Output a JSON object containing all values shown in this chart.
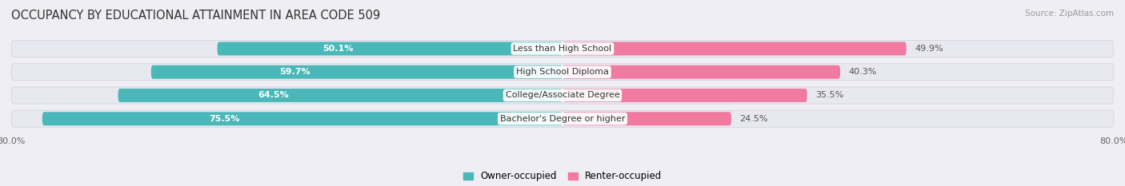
{
  "title": "OCCUPANCY BY EDUCATIONAL ATTAINMENT IN AREA CODE 509",
  "source": "Source: ZipAtlas.com",
  "categories": [
    "Less than High School",
    "High School Diploma",
    "College/Associate Degree",
    "Bachelor's Degree or higher"
  ],
  "owner_values": [
    50.1,
    59.7,
    64.5,
    75.5
  ],
  "renter_values": [
    49.9,
    40.3,
    35.5,
    24.5
  ],
  "owner_color": "#4ab8b8",
  "renter_color": "#f07aa0",
  "background_color": "#eeeef4",
  "bar_bg_color": "#e2e2ea",
  "row_bg_color": "#e8e8f0",
  "xlim_left": -80.0,
  "xlim_right": 80.0,
  "title_fontsize": 10.5,
  "label_fontsize": 8.0,
  "value_fontsize": 8.0,
  "x_axis_fontsize": 8.0
}
